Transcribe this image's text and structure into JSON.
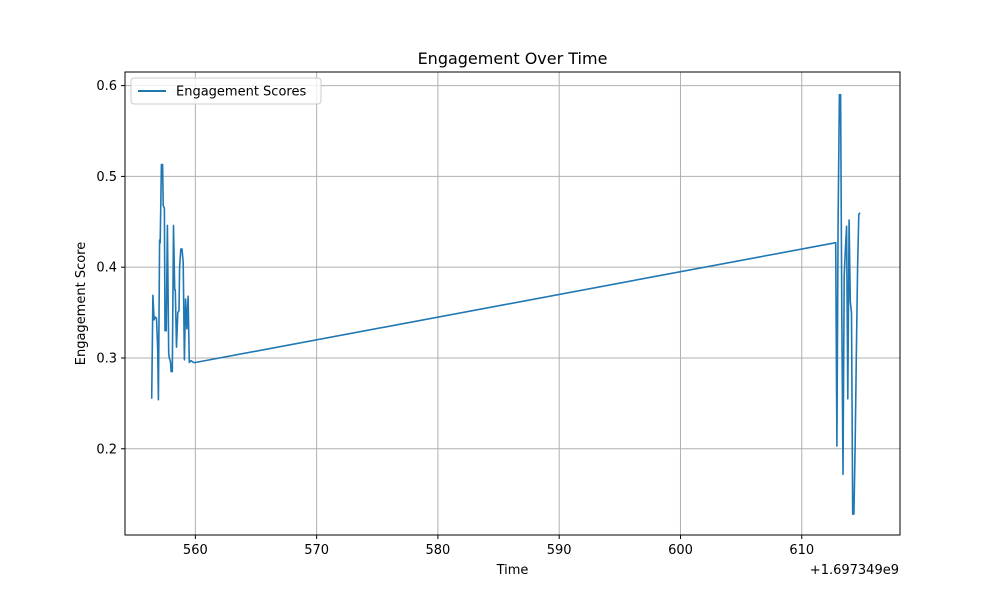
{
  "chart_data": {
    "type": "line",
    "title": "Engagement Over Time",
    "xlabel": "Time",
    "ylabel": "Engagement Score",
    "x_offset_label": "+1.697349e9",
    "xlim": [
      554.2,
      618.1
    ],
    "ylim": [
      0.105,
      0.615
    ],
    "xticks": [
      560,
      570,
      580,
      590,
      600,
      610
    ],
    "xtick_labels": [
      "560",
      "570",
      "580",
      "590",
      "600",
      "610"
    ],
    "yticks": [
      0.2,
      0.3,
      0.4,
      0.5,
      0.6
    ],
    "ytick_labels": [
      "0.2",
      "0.3",
      "0.4",
      "0.5",
      "0.6"
    ],
    "grid": true,
    "legend_position": "top-left",
    "colors": {
      "line": "#1f77b4",
      "grid": "#b0b0b0",
      "frame": "#000000"
    },
    "series": [
      {
        "name": "Engagement Scores",
        "x": [
          556.4,
          556.5,
          556.6,
          556.7,
          556.8,
          556.9,
          556.95,
          557.05,
          557.1,
          557.2,
          557.3,
          557.35,
          557.45,
          557.5,
          557.6,
          557.7,
          557.8,
          557.85,
          557.95,
          558.0,
          558.1,
          558.2,
          558.3,
          558.35,
          558.45,
          558.55,
          558.65,
          558.7,
          558.8,
          558.9,
          559.0,
          559.1,
          559.2,
          559.3,
          559.4,
          559.5,
          559.55,
          559.65,
          559.75,
          559.85,
          560.0,
          612.8,
          612.9,
          613.0,
          613.1,
          613.2,
          613.3,
          613.4,
          613.5,
          613.6,
          613.7,
          613.8,
          613.9,
          614.0,
          614.1,
          614.2,
          614.3,
          614.4,
          614.5,
          614.6,
          614.7,
          614.8
        ],
        "y": [
          0.255,
          0.369,
          0.342,
          0.345,
          0.344,
          0.31,
          0.254,
          0.43,
          0.427,
          0.513,
          0.513,
          0.468,
          0.465,
          0.33,
          0.33,
          0.446,
          0.305,
          0.3,
          0.296,
          0.285,
          0.285,
          0.446,
          0.375,
          0.375,
          0.312,
          0.35,
          0.352,
          0.4,
          0.42,
          0.42,
          0.405,
          0.298,
          0.365,
          0.332,
          0.368,
          0.295,
          0.296,
          0.297,
          0.296,
          0.295,
          0.295,
          0.427,
          0.203,
          0.45,
          0.59,
          0.59,
          0.35,
          0.172,
          0.39,
          0.42,
          0.445,
          0.255,
          0.452,
          0.362,
          0.35,
          0.128,
          0.128,
          0.2,
          0.3,
          0.4,
          0.458,
          0.46
        ]
      }
    ]
  }
}
